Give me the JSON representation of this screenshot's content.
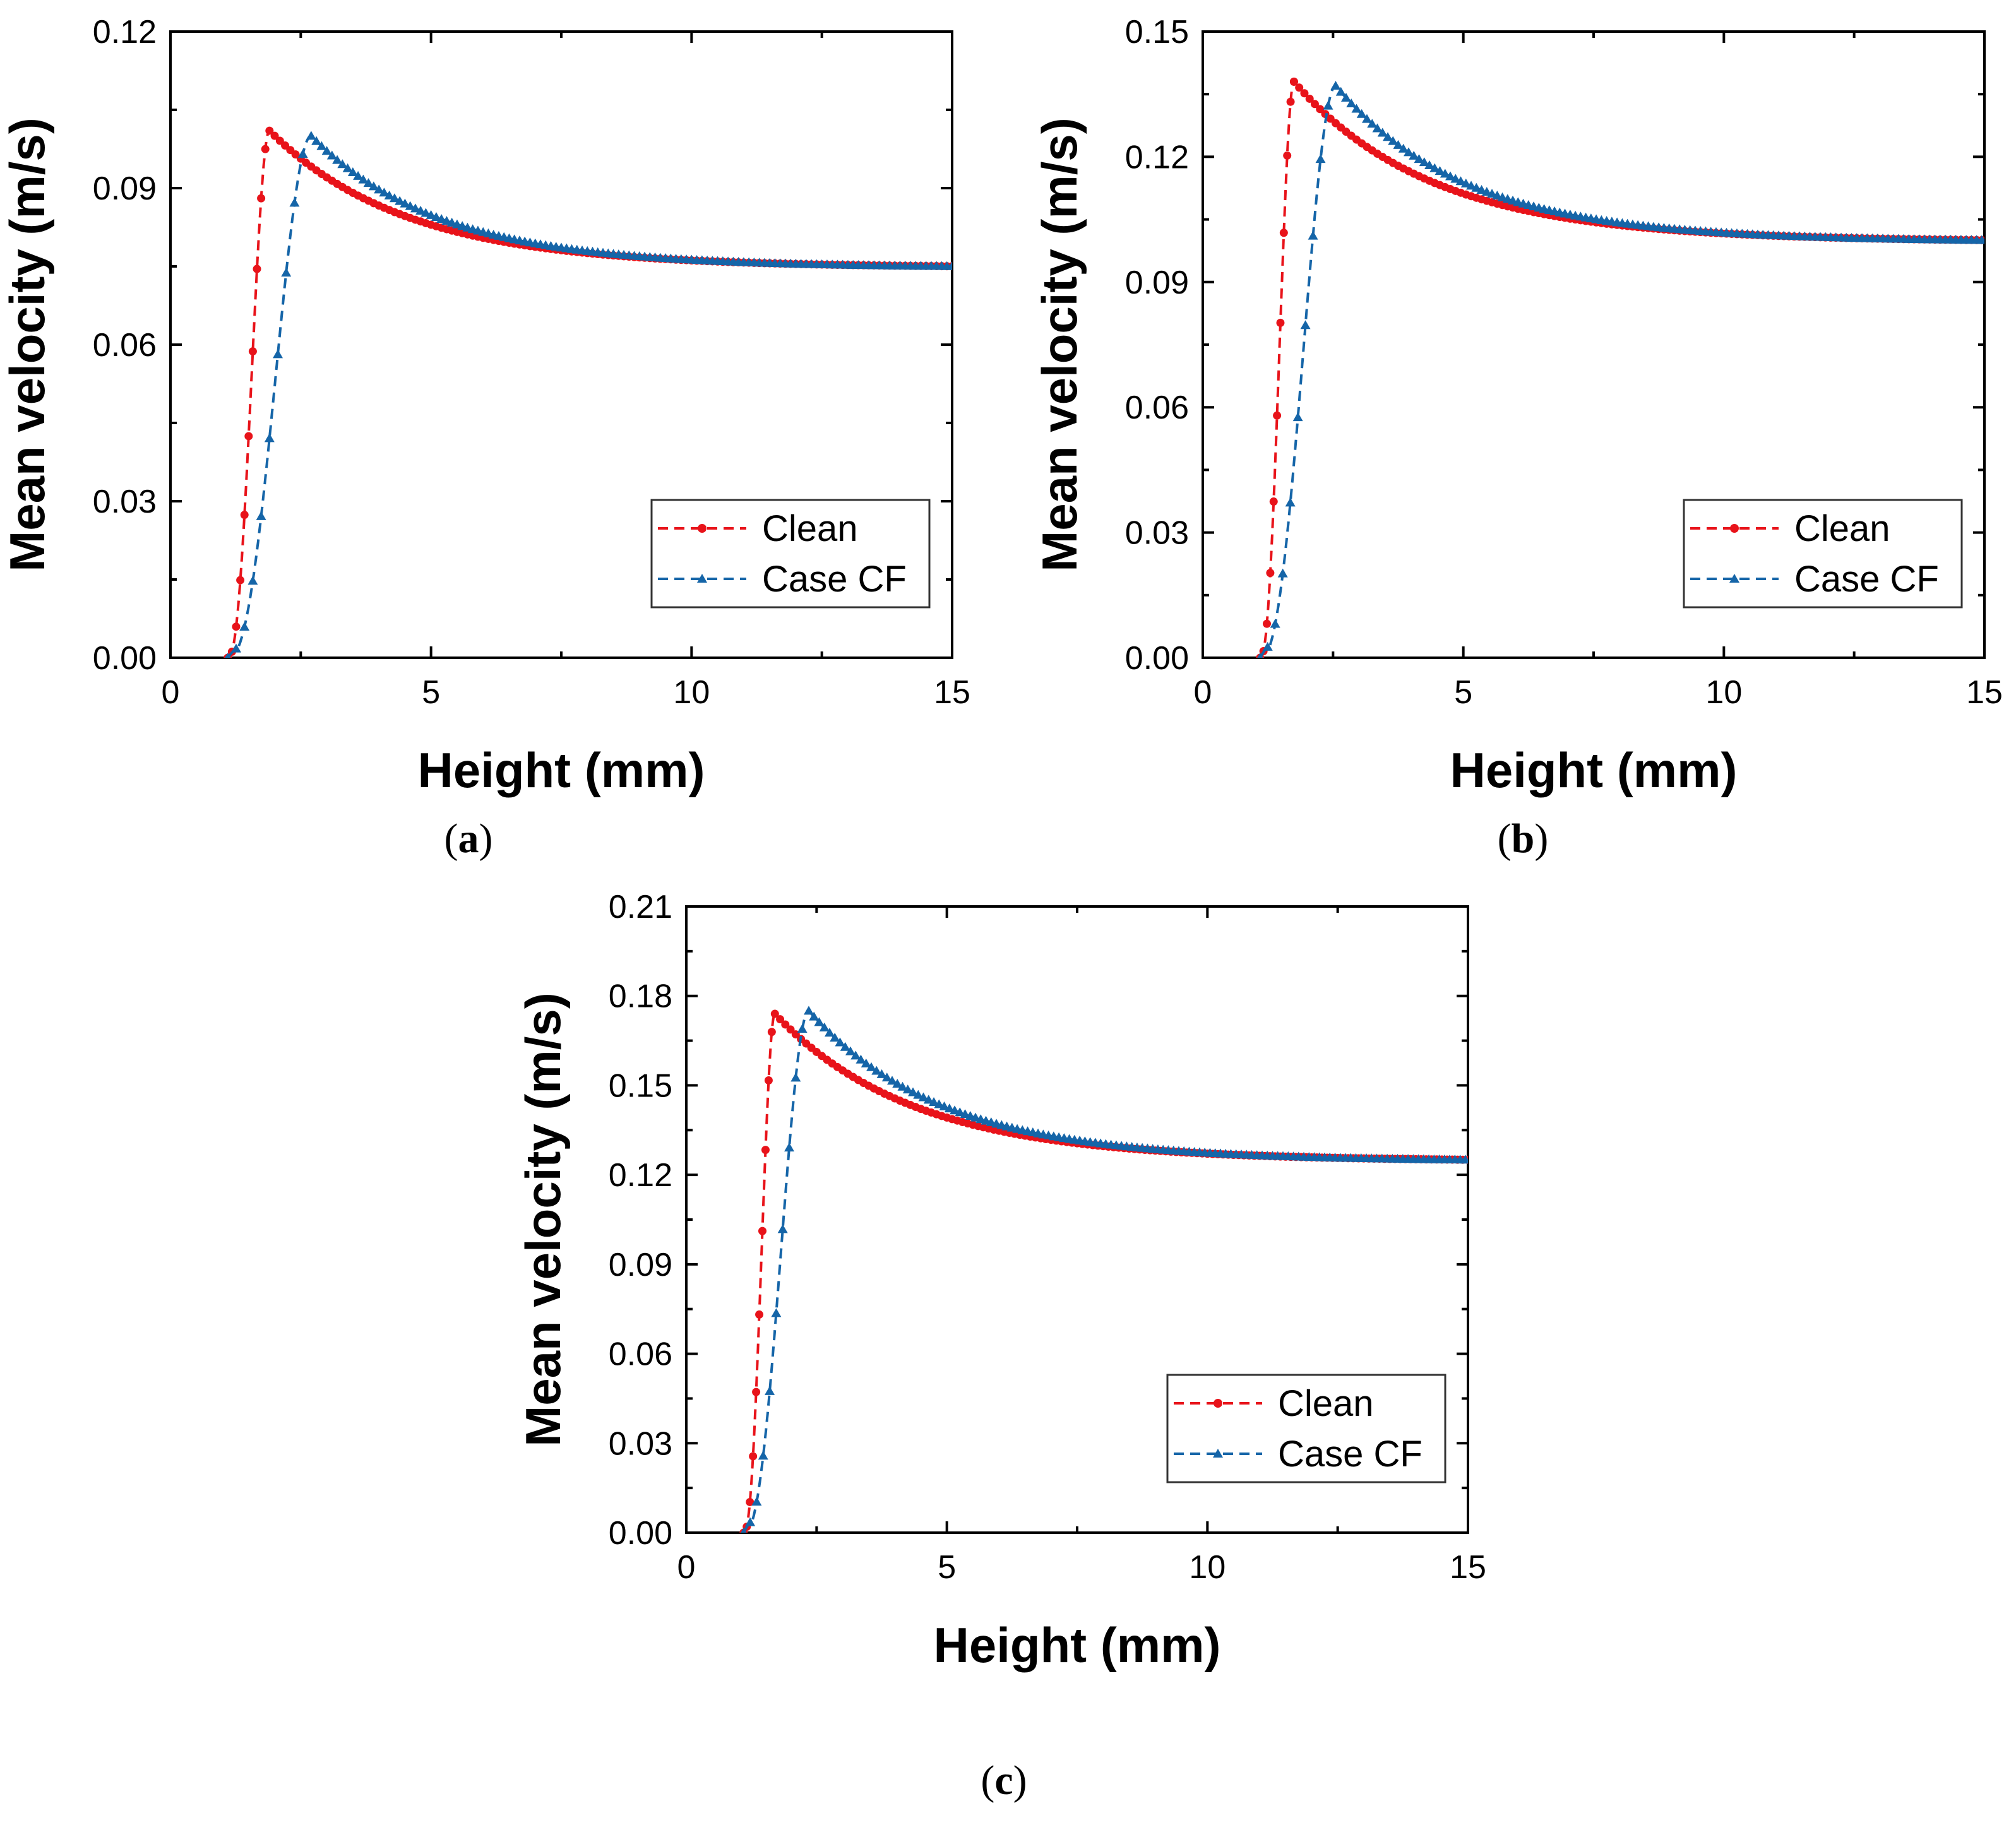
{
  "colors": {
    "clean": "#e8131a",
    "case_cf": "#1565a8",
    "axis": "#000000"
  },
  "chart_data": [
    {
      "id": "a",
      "type": "line",
      "panel_label": {
        "open": "(",
        "letter": "a",
        "close": ")"
      },
      "xlabel": "Height (mm)",
      "ylabel": "Mean velocity (m/s)",
      "xlim": [
        0,
        15
      ],
      "ylim": [
        0,
        0.12
      ],
      "xticks": [
        0,
        5,
        10,
        15
      ],
      "xtick_labels": [
        "0",
        "5",
        "10",
        "15"
      ],
      "yticks": [
        0,
        0.03,
        0.06,
        0.09,
        0.12
      ],
      "ytick_labels": [
        "0.00",
        "0.03",
        "0.06",
        "0.09",
        "0.12"
      ],
      "legend_position": "lower-right",
      "series": [
        {
          "name": "Clean",
          "color": "#e8131a",
          "marker": "circle",
          "linestyle": "dashed",
          "profile": {
            "x0": 1.1,
            "rise_end": 1.9,
            "peak": 0.101,
            "x_end": 15,
            "end_value": 0.075
          }
        },
        {
          "name": "Case CF",
          "color": "#1565a8",
          "marker": "triangle",
          "linestyle": "dashed",
          "profile": {
            "x0": 1.1,
            "rise_end": 2.7,
            "peak": 0.1,
            "x_end": 15,
            "end_value": 0.075,
            "bump": 0.002
          }
        }
      ]
    },
    {
      "id": "b",
      "type": "line",
      "panel_label": {
        "open": "(",
        "letter": "b",
        "close": ")"
      },
      "xlabel": "Height (mm)",
      "ylabel": "Mean velocity (m/s)",
      "xlim": [
        0,
        15
      ],
      "ylim": [
        0,
        0.15
      ],
      "xticks": [
        0,
        5,
        10,
        15
      ],
      "xtick_labels": [
        "0",
        "5",
        "10",
        "15"
      ],
      "yticks": [
        0,
        0.03,
        0.06,
        0.09,
        0.12,
        0.15
      ],
      "ytick_labels": [
        "0.00",
        "0.03",
        "0.06",
        "0.09",
        "0.12",
        "0.15"
      ],
      "legend_position": "lower-right",
      "series": [
        {
          "name": "Clean",
          "color": "#e8131a",
          "marker": "circle",
          "linestyle": "dashed",
          "profile": {
            "x0": 1.1,
            "rise_end": 1.75,
            "peak": 0.138,
            "x_end": 15,
            "end_value": 0.1
          }
        },
        {
          "name": "Case CF",
          "color": "#1565a8",
          "marker": "triangle",
          "linestyle": "dashed",
          "profile": {
            "x0": 1.1,
            "rise_end": 2.55,
            "peak": 0.137,
            "x_end": 15,
            "end_value": 0.1,
            "bump": 0.003
          }
        }
      ]
    },
    {
      "id": "c",
      "type": "line",
      "panel_label": {
        "open": "(",
        "letter": "c",
        "close": ")"
      },
      "xlabel": "Height (mm)",
      "ylabel": "Mean velocity (m/s)",
      "xlim": [
        0,
        15
      ],
      "ylim": [
        0,
        0.21
      ],
      "xticks": [
        0,
        5,
        10,
        15
      ],
      "xtick_labels": [
        "0",
        "5",
        "10",
        "15"
      ],
      "yticks": [
        0,
        0.03,
        0.06,
        0.09,
        0.12,
        0.15,
        0.18,
        0.21
      ],
      "ytick_labels": [
        "0.00",
        "0.03",
        "0.06",
        "0.09",
        "0.12",
        "0.15",
        "0.18",
        "0.21"
      ],
      "legend_position": "lower-right",
      "series": [
        {
          "name": "Clean",
          "color": "#e8131a",
          "marker": "circle",
          "linestyle": "dashed",
          "profile": {
            "x0": 1.1,
            "rise_end": 1.7,
            "peak": 0.174,
            "x_end": 15,
            "end_value": 0.125
          }
        },
        {
          "name": "Case CF",
          "color": "#1565a8",
          "marker": "triangle",
          "linestyle": "dashed",
          "profile": {
            "x0": 1.1,
            "rise_end": 2.35,
            "peak": 0.175,
            "x_end": 15,
            "end_value": 0.125,
            "bump": 0.004
          }
        }
      ]
    }
  ]
}
